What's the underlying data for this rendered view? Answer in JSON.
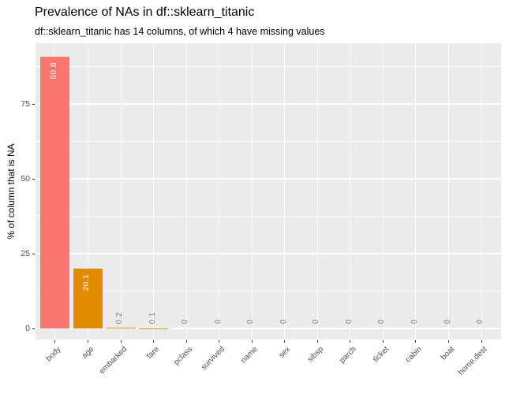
{
  "title": "Prevalence of NAs in df::sklearn_titanic",
  "subtitle": "df::sklearn_titanic has 14 columns, of which 4 have missing values",
  "chart_data": {
    "type": "bar",
    "title": "Prevalence of NAs in df::sklearn_titanic",
    "subtitle": "df::sklearn_titanic has 14 columns, of which 4 have missing values",
    "categories": [
      "body",
      "age",
      "embarked",
      "fare",
      "pclass",
      "survived",
      "name",
      "sex",
      "sibsp",
      "parch",
      "ticket",
      "cabin",
      "boat",
      "home.dest"
    ],
    "values": [
      90.8,
      20.1,
      0.2,
      0.1,
      0,
      0,
      0,
      0,
      0,
      0,
      0,
      0,
      0,
      0
    ],
    "bar_labels": [
      "90.8",
      "20.1",
      "0.2",
      "0.1",
      "0",
      "0",
      "0",
      "0",
      "0",
      "0",
      "0",
      "0",
      "0",
      "0"
    ],
    "bar_colors": [
      "#F8766D",
      "#E08B00",
      "#E08B00",
      "#E08B00",
      "#E08B00",
      "#E08B00",
      "#E08B00",
      "#E08B00",
      "#E08B00",
      "#E08B00",
      "#E08B00",
      "#E08B00",
      "#E08B00",
      "#E08B00"
    ],
    "xlabel": "",
    "ylabel": "% of column that is NA",
    "y_ticks": [
      0,
      25,
      50,
      75
    ],
    "y_minor_ticks": [
      12.5,
      37.5,
      62.5,
      87.5
    ],
    "ylim": [
      -3.7,
      95.3
    ],
    "grid": "white major+minor horizontal lines, white vertical line per category, on gray panel",
    "legend": "none",
    "colors": {
      "panel_bg": "#EBEBEB",
      "grid": "#FFFFFF",
      "axis_tick": "#333333",
      "tick_label": "#4D4D4D",
      "label_inside": "#FFFFFF",
      "label_outside": "#808080"
    }
  }
}
